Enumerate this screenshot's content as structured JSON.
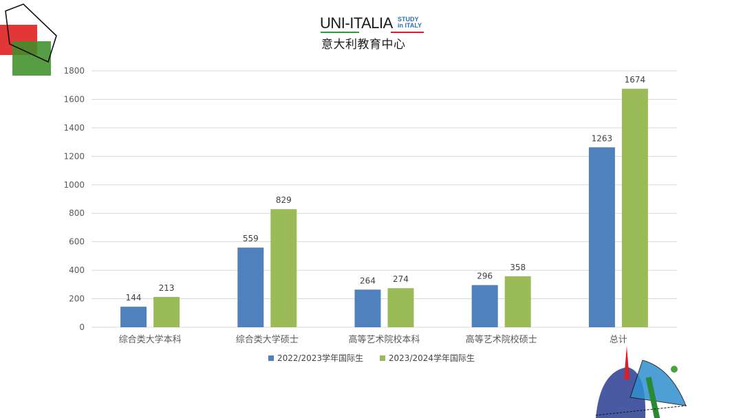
{
  "logo": {
    "main": "UNI-ITALIA",
    "study_line1": "STUDY",
    "study_line2": "in ITALY",
    "chinese": "意大利教育中心"
  },
  "colors": {
    "series1": "#4f81bd",
    "series2": "#9bbb59",
    "grid": "#d9d9d9",
    "axis_text": "#595959"
  },
  "chart_data": {
    "type": "bar",
    "categories": [
      "综合类大学本科",
      "综合类大学硕士",
      "高等艺术院校本科",
      "高等艺术院校硕士",
      "总计"
    ],
    "series": [
      {
        "name": "2022/2023学年国际生",
        "values": [
          144,
          559,
          264,
          296,
          1263
        ]
      },
      {
        "name": "2023/2024学年国际生",
        "values": [
          213,
          829,
          274,
          358,
          1674
        ]
      }
    ],
    "yticks": [
      0,
      200,
      400,
      600,
      800,
      1000,
      1200,
      1400,
      1600,
      1800
    ],
    "ylim": [
      0,
      1800
    ],
    "grid": true,
    "legend_position": "bottom"
  }
}
